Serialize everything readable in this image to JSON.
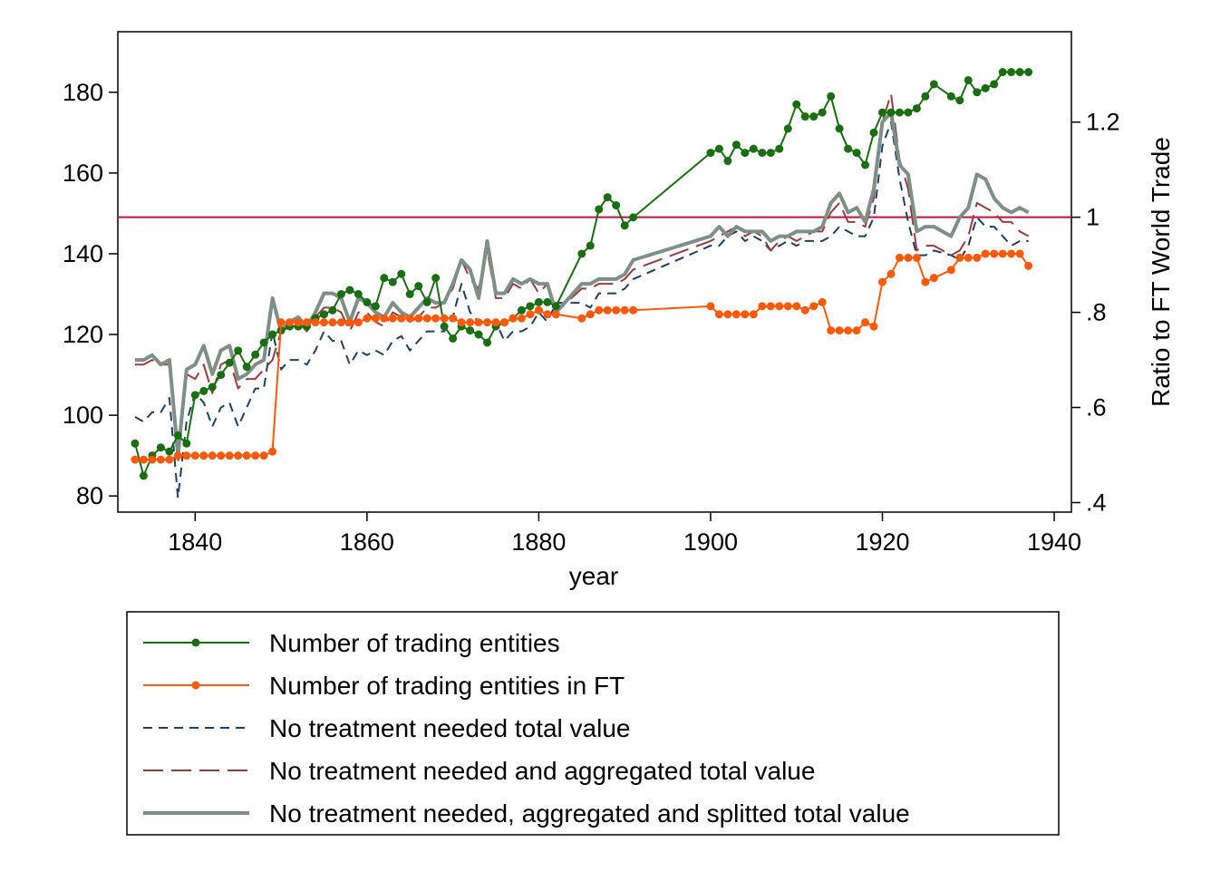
{
  "chart_data": {
    "type": "line",
    "xlabel": "year",
    "ylabel_right": "Ratio to FT World Trade",
    "xlim": [
      1831,
      1942
    ],
    "ylim_left": [
      76,
      195
    ],
    "ylim_right": [
      0.38,
      1.39
    ],
    "xticks": [
      1840,
      1860,
      1880,
      1900,
      1920,
      1940
    ],
    "xtick_labels": [
      "1840",
      "1860",
      "1880",
      "1900",
      "1920",
      "1940"
    ],
    "yticks_left": [
      80,
      100,
      120,
      140,
      160,
      180
    ],
    "ytick_labels_left": [
      "80",
      "100",
      "120",
      "140",
      "160",
      "180"
    ],
    "yticks_right": [
      0.4,
      0.6,
      0.8,
      1.0,
      1.2
    ],
    "ytick_labels_right": [
      ".4",
      ".6",
      ".8",
      "1",
      "1.2"
    ],
    "reference_line": {
      "axis": "right",
      "value": 1.0,
      "color": "#c0103c"
    },
    "legend_placement": "bottom",
    "series": [
      {
        "name": "Number of trading entities",
        "axis": "left",
        "style": "line-with-markers",
        "color": "#1a6e12",
        "x": [
          1833,
          1834,
          1835,
          1836,
          1837,
          1838,
          1839,
          1840,
          1841,
          1842,
          1843,
          1844,
          1845,
          1846,
          1847,
          1848,
          1849,
          1850,
          1851,
          1852,
          1853,
          1854,
          1855,
          1856,
          1857,
          1858,
          1859,
          1860,
          1861,
          1862,
          1863,
          1864,
          1865,
          1866,
          1867,
          1868,
          1869,
          1870,
          1871,
          1872,
          1873,
          1874,
          1875,
          1876,
          1877,
          1878,
          1879,
          1880,
          1881,
          1882,
          1885,
          1886,
          1887,
          1888,
          1889,
          1890,
          1891,
          1900,
          1901,
          1902,
          1903,
          1904,
          1905,
          1906,
          1907,
          1908,
          1909,
          1910,
          1911,
          1912,
          1913,
          1914,
          1915,
          1916,
          1917,
          1918,
          1919,
          1920,
          1921,
          1922,
          1923,
          1924,
          1925,
          1926,
          1928,
          1929,
          1930,
          1931,
          1932,
          1933,
          1934,
          1935,
          1936,
          1937
        ],
        "values": [
          93,
          85,
          90,
          92,
          91,
          95,
          93,
          105,
          106,
          107,
          110,
          113,
          116,
          112,
          115,
          118,
          120,
          121,
          122,
          122,
          122,
          124,
          125,
          126,
          130,
          131,
          130,
          128,
          127,
          134,
          133,
          135,
          130,
          132,
          128,
          134,
          122,
          119,
          122,
          121,
          120,
          118,
          122,
          123,
          124,
          126,
          127,
          128,
          128,
          127,
          140,
          142,
          151,
          154,
          152,
          147,
          149,
          165,
          166,
          163,
          167,
          165,
          166,
          165,
          165,
          166,
          171,
          177,
          174,
          174,
          175,
          179,
          171,
          166,
          165,
          162,
          170,
          175,
          175,
          175,
          175,
          176,
          179,
          182,
          179,
          178,
          183,
          180,
          181,
          182,
          185,
          185,
          185,
          185
        ]
      },
      {
        "name": "Number of trading entities in FT",
        "axis": "left",
        "style": "line-with-markers",
        "color": "#ff5a0a",
        "x": [
          1833,
          1834,
          1835,
          1836,
          1837,
          1838,
          1839,
          1840,
          1841,
          1842,
          1843,
          1844,
          1845,
          1846,
          1847,
          1848,
          1849,
          1850,
          1851,
          1852,
          1853,
          1854,
          1855,
          1856,
          1857,
          1858,
          1859,
          1860,
          1861,
          1862,
          1863,
          1864,
          1865,
          1866,
          1867,
          1868,
          1869,
          1870,
          1871,
          1872,
          1873,
          1874,
          1875,
          1876,
          1877,
          1878,
          1879,
          1880,
          1881,
          1882,
          1885,
          1886,
          1887,
          1888,
          1889,
          1890,
          1891,
          1900,
          1901,
          1902,
          1903,
          1904,
          1905,
          1906,
          1907,
          1908,
          1909,
          1910,
          1911,
          1912,
          1913,
          1914,
          1915,
          1916,
          1917,
          1918,
          1919,
          1920,
          1921,
          1922,
          1923,
          1924,
          1925,
          1926,
          1928,
          1929,
          1930,
          1931,
          1932,
          1933,
          1934,
          1935,
          1936,
          1937
        ],
        "values": [
          89,
          89,
          89,
          89,
          89,
          90,
          90,
          90,
          90,
          90,
          90,
          90,
          90,
          90,
          90,
          90,
          91,
          123,
          123,
          123,
          123,
          123,
          123,
          123,
          123,
          123,
          123,
          124,
          124,
          124,
          124,
          124,
          124,
          124,
          124,
          124,
          124,
          124,
          123,
          123,
          123,
          123,
          123,
          123,
          124,
          124,
          125,
          126,
          125,
          125,
          124,
          125,
          126,
          126,
          126,
          126,
          126,
          127,
          125,
          125,
          125,
          125,
          125,
          127,
          127,
          127,
          127,
          127,
          126,
          127,
          128,
          121,
          121,
          121,
          121,
          123,
          122,
          133,
          135,
          139,
          139,
          139,
          133,
          134,
          136,
          139,
          139,
          139,
          140,
          140,
          140,
          140,
          140,
          137
        ]
      },
      {
        "name": "No treatment needed total value",
        "axis": "right",
        "style": "short-dash",
        "color": "#1f3f63",
        "x": [
          1833,
          1834,
          1835,
          1836,
          1837,
          1838,
          1839,
          1840,
          1841,
          1842,
          1843,
          1844,
          1845,
          1846,
          1847,
          1848,
          1849,
          1850,
          1851,
          1852,
          1853,
          1854,
          1855,
          1856,
          1857,
          1858,
          1859,
          1860,
          1861,
          1862,
          1863,
          1864,
          1865,
          1866,
          1867,
          1868,
          1869,
          1870,
          1871,
          1872,
          1873,
          1874,
          1875,
          1876,
          1877,
          1878,
          1879,
          1880,
          1881,
          1882,
          1885,
          1886,
          1887,
          1888,
          1889,
          1890,
          1891,
          1900,
          1901,
          1902,
          1903,
          1904,
          1905,
          1906,
          1907,
          1908,
          1909,
          1910,
          1911,
          1912,
          1913,
          1914,
          1915,
          1916,
          1917,
          1918,
          1919,
          1920,
          1921,
          1922,
          1923,
          1924,
          1925,
          1926,
          1928,
          1929,
          1930,
          1931,
          1932,
          1933,
          1934,
          1935,
          1936,
          1937
        ],
        "values": [
          0.58,
          0.57,
          0.59,
          0.59,
          0.62,
          0.41,
          0.57,
          0.63,
          0.61,
          0.56,
          0.6,
          0.61,
          0.56,
          0.6,
          0.64,
          0.64,
          0.76,
          0.68,
          0.7,
          0.7,
          0.69,
          0.72,
          0.76,
          0.74,
          0.74,
          0.69,
          0.72,
          0.71,
          0.72,
          0.71,
          0.74,
          0.75,
          0.72,
          0.74,
          0.76,
          0.76,
          0.76,
          0.79,
          0.86,
          0.8,
          0.78,
          0.78,
          0.78,
          0.74,
          0.76,
          0.76,
          0.77,
          0.8,
          0.78,
          0.82,
          0.82,
          0.81,
          0.84,
          0.84,
          0.84,
          0.85,
          0.87,
          0.94,
          0.94,
          0.96,
          0.97,
          0.95,
          0.96,
          0.95,
          0.93,
          0.94,
          0.95,
          0.94,
          0.95,
          0.95,
          0.95,
          0.96,
          0.98,
          0.97,
          0.96,
          0.96,
          1.0,
          1.15,
          1.2,
          1.08,
          0.99,
          0.92,
          0.92,
          0.93,
          0.92,
          0.91,
          0.94,
          1.0,
          0.98,
          0.98,
          0.96,
          0.94,
          0.95,
          0.95
        ]
      },
      {
        "name": "No treatment needed and aggregated total value",
        "axis": "right",
        "style": "long-dash",
        "color": "#9c3b3b",
        "x": [
          1833,
          1834,
          1835,
          1836,
          1837,
          1838,
          1839,
          1840,
          1841,
          1842,
          1843,
          1844,
          1845,
          1846,
          1847,
          1848,
          1849,
          1850,
          1851,
          1852,
          1853,
          1854,
          1855,
          1856,
          1857,
          1858,
          1859,
          1860,
          1861,
          1862,
          1863,
          1864,
          1865,
          1866,
          1867,
          1868,
          1869,
          1870,
          1871,
          1872,
          1873,
          1874,
          1875,
          1876,
          1877,
          1878,
          1879,
          1880,
          1881,
          1882,
          1885,
          1886,
          1887,
          1888,
          1889,
          1890,
          1891,
          1900,
          1901,
          1902,
          1903,
          1904,
          1905,
          1906,
          1907,
          1908,
          1909,
          1910,
          1911,
          1912,
          1913,
          1914,
          1915,
          1916,
          1917,
          1918,
          1919,
          1920,
          1921,
          1922,
          1923,
          1924,
          1925,
          1926,
          1928,
          1929,
          1930,
          1931,
          1932,
          1933,
          1934,
          1935,
          1936,
          1937
        ],
        "values": [
          0.69,
          0.69,
          0.7,
          0.69,
          0.69,
          0.48,
          0.67,
          0.66,
          0.69,
          0.63,
          0.69,
          0.7,
          0.64,
          0.66,
          0.66,
          0.68,
          0.7,
          0.76,
          0.77,
          0.78,
          0.76,
          0.79,
          0.81,
          0.81,
          0.8,
          0.76,
          0.8,
          0.8,
          0.78,
          0.77,
          0.8,
          0.79,
          0.78,
          0.79,
          0.81,
          0.81,
          0.82,
          0.85,
          0.91,
          0.87,
          0.85,
          0.93,
          0.83,
          0.83,
          0.86,
          0.85,
          0.87,
          0.84,
          0.86,
          0.8,
          0.85,
          0.85,
          0.86,
          0.86,
          0.86,
          0.87,
          0.89,
          0.95,
          0.96,
          0.97,
          0.98,
          0.96,
          0.97,
          0.96,
          0.93,
          0.95,
          0.96,
          0.95,
          0.96,
          0.97,
          0.97,
          1.01,
          1.03,
          0.99,
          0.99,
          0.98,
          1.04,
          1.2,
          1.26,
          1.12,
          1.06,
          0.93,
          0.94,
          0.94,
          0.92,
          0.93,
          0.96,
          1.03,
          1.02,
          1.01,
          0.99,
          0.99,
          0.97,
          0.96
        ]
      },
      {
        "name": "No treatment needed, aggregated and splitted total value",
        "axis": "right",
        "style": "solid-thick",
        "color": "#7d8f86",
        "x": [
          1833,
          1834,
          1835,
          1836,
          1837,
          1838,
          1839,
          1840,
          1841,
          1842,
          1843,
          1844,
          1845,
          1846,
          1847,
          1848,
          1849,
          1850,
          1851,
          1852,
          1853,
          1854,
          1855,
          1856,
          1857,
          1858,
          1859,
          1860,
          1861,
          1862,
          1863,
          1864,
          1865,
          1866,
          1867,
          1868,
          1869,
          1870,
          1871,
          1872,
          1873,
          1874,
          1875,
          1876,
          1877,
          1878,
          1879,
          1880,
          1881,
          1882,
          1885,
          1886,
          1887,
          1888,
          1889,
          1890,
          1891,
          1900,
          1901,
          1902,
          1903,
          1904,
          1905,
          1906,
          1907,
          1908,
          1909,
          1910,
          1911,
          1912,
          1913,
          1914,
          1915,
          1916,
          1917,
          1918,
          1919,
          1920,
          1921,
          1922,
          1923,
          1924,
          1925,
          1926,
          1928,
          1929,
          1930,
          1931,
          1932,
          1933,
          1934,
          1935,
          1936,
          1937
        ],
        "values": [
          0.7,
          0.7,
          0.71,
          0.69,
          0.7,
          0.5,
          0.68,
          0.69,
          0.73,
          0.67,
          0.72,
          0.73,
          0.66,
          0.67,
          0.69,
          0.7,
          0.83,
          0.76,
          0.78,
          0.79,
          0.77,
          0.8,
          0.84,
          0.84,
          0.83,
          0.78,
          0.83,
          0.82,
          0.8,
          0.79,
          0.82,
          0.8,
          0.79,
          0.81,
          0.83,
          0.82,
          0.82,
          0.86,
          0.91,
          0.89,
          0.83,
          0.95,
          0.84,
          0.84,
          0.87,
          0.86,
          0.87,
          0.86,
          0.86,
          0.8,
          0.86,
          0.86,
          0.87,
          0.87,
          0.87,
          0.88,
          0.91,
          0.96,
          0.98,
          0.96,
          0.98,
          0.97,
          0.97,
          0.97,
          0.95,
          0.96,
          0.96,
          0.97,
          0.97,
          0.97,
          0.98,
          1.03,
          1.05,
          1.01,
          1.02,
          0.99,
          1.06,
          1.2,
          1.22,
          1.11,
          1.09,
          0.97,
          0.98,
          0.98,
          0.96,
          1.0,
          1.02,
          1.09,
          1.08,
          1.04,
          1.02,
          1.01,
          1.02,
          1.01
        ]
      }
    ]
  }
}
